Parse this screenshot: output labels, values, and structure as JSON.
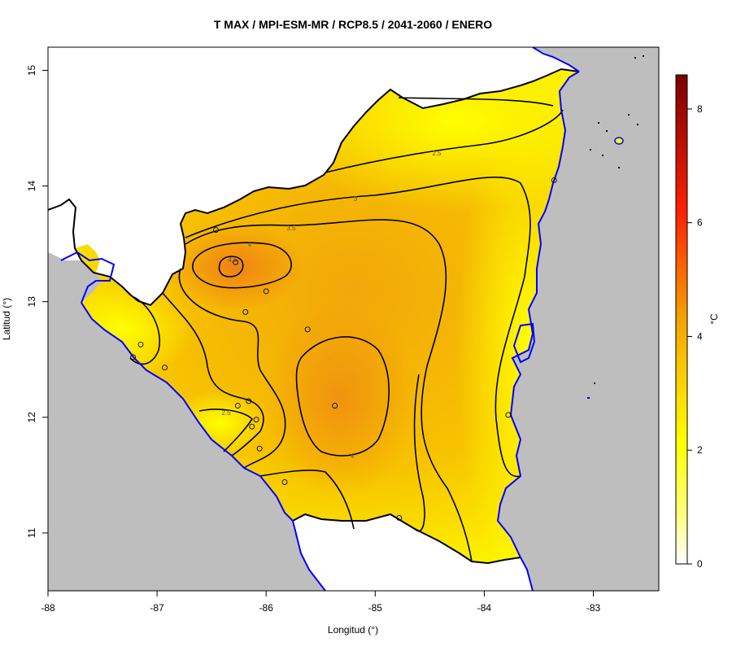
{
  "chart_data": {
    "type": "heatmap",
    "title": "T MAX / MPI-ESM-MR / RCP8.5 / 2041-2060 / ENERO",
    "xlabel": "Longitud (°)",
    "ylabel": "Latitud (°)",
    "xlim": [
      -88,
      -82.4
    ],
    "ylim": [
      10.5,
      15.2
    ],
    "xticks": [
      "-88",
      "-87",
      "-86",
      "-85",
      "-84",
      "-83"
    ],
    "yticks": [
      "11",
      "12",
      "13",
      "14",
      "15"
    ],
    "colorbar": {
      "label": "°C",
      "range": [
        0,
        8.6
      ],
      "ticks": [
        "0",
        "2",
        "4",
        "6",
        "8"
      ],
      "colors": [
        "#ffffff",
        "#ffff00",
        "#f5a300",
        "#ff2000",
        "#7a0000"
      ]
    },
    "contour_levels": [
      "2.5",
      "3",
      "3.5",
      "4",
      "4.5"
    ],
    "stations": [
      {
        "lon": -83.36,
        "lat": 14.05
      },
      {
        "lon": -86.46,
        "lat": 13.62
      },
      {
        "lon": -86.28,
        "lat": 13.34
      },
      {
        "lon": -86.0,
        "lat": 13.09
      },
      {
        "lon": -86.19,
        "lat": 12.91
      },
      {
        "lon": -85.62,
        "lat": 12.76
      },
      {
        "lon": -87.15,
        "lat": 12.63
      },
      {
        "lon": -87.22,
        "lat": 12.52
      },
      {
        "lon": -86.93,
        "lat": 12.43
      },
      {
        "lon": -86.16,
        "lat": 12.14
      },
      {
        "lon": -86.26,
        "lat": 12.1
      },
      {
        "lon": -85.37,
        "lat": 12.1
      },
      {
        "lon": -86.09,
        "lat": 11.98
      },
      {
        "lon": -86.13,
        "lat": 11.92
      },
      {
        "lon": -83.78,
        "lat": 12.02
      },
      {
        "lon": -86.06,
        "lat": 11.73
      },
      {
        "lon": -85.83,
        "lat": 11.44
      },
      {
        "lon": -84.78,
        "lat": 11.13
      }
    ],
    "colors": {
      "sea": "#bebebe",
      "coast": "#0000ff",
      "border": "#000000",
      "contour": "#000000"
    }
  }
}
